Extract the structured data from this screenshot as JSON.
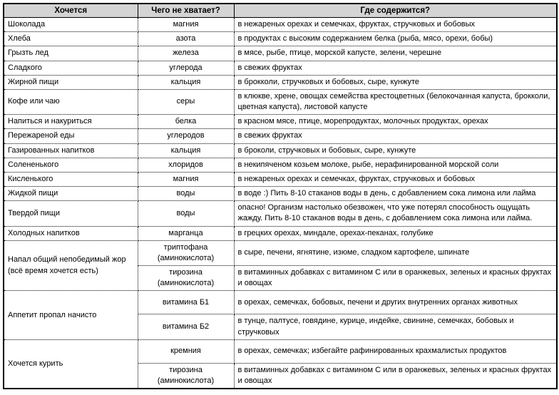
{
  "colors": {
    "page_bg": "#ffffff",
    "header_bg": "#d4d4d4",
    "border": "#000000",
    "text": "#000000"
  },
  "table": {
    "headers": [
      "Хочется",
      "Чего не хватает?",
      "Где содержится?"
    ],
    "rows": [
      {
        "craving": "Шоколада",
        "craving_rowspan": 1,
        "lacking": "магния",
        "source": "в нежареных орехах и семечках, фруктах, стручковых и бобовых"
      },
      {
        "craving": "Хлеба",
        "craving_rowspan": 1,
        "lacking": "азота",
        "source": "в продуктах с высоким содержанием белка (рыба, мясо, орехи, бобы)"
      },
      {
        "craving": "Грызть лед",
        "craving_rowspan": 1,
        "lacking": "железа",
        "source": "в мясе, рыбе, птице, морской капусте, зелени, черешне"
      },
      {
        "craving": "Сладкого",
        "craving_rowspan": 1,
        "lacking": "углерода",
        "source": "в свежих фруктах"
      },
      {
        "craving": "Жирной пищи",
        "craving_rowspan": 1,
        "lacking": "кальция",
        "source": "в брокколи, стручковых и бобовых, сыре, кунжуте"
      },
      {
        "craving": "Кофе или чаю",
        "craving_rowspan": 1,
        "lacking": "серы",
        "source": "в клюкве, хрене, овощах семейства крестоцветных (белокочанная капуста, брокколи, цветная капуста), листовой капусте"
      },
      {
        "craving": "Напиться и накуриться",
        "craving_rowspan": 1,
        "lacking": "белка",
        "source": "в красном мясе, птице, морепродуктах, молочных продуктах, орехах"
      },
      {
        "craving": "Пережареной еды",
        "craving_rowspan": 1,
        "lacking": "углеродов",
        "source": "в свежих фруктах"
      },
      {
        "craving": "Газированных напитков",
        "craving_rowspan": 1,
        "lacking": "кальция",
        "source": "в броколи, стручковых и бобовых, сыре, кунжуте"
      },
      {
        "craving": "Солененького",
        "craving_rowspan": 1,
        "lacking": "хлоридов",
        "source": "в некипяченом козьем молоке, рыбе, нерафинированной морской соли"
      },
      {
        "craving": "Кисленького",
        "craving_rowspan": 1,
        "lacking": "магния",
        "source": "в нежареных орехах и семечках, фруктах, стручковых и бобовых"
      },
      {
        "craving": "Жидкой пищи",
        "craving_rowspan": 1,
        "lacking": "воды",
        "source": "в воде :) Пить 8-10 стаканов воды в день, с добавлением сока лимона или лайма"
      },
      {
        "craving": "Твердой пищи",
        "craving_rowspan": 1,
        "lacking": "воды",
        "source": "опасно! Организм настолько обезвожен, что уже потерял способность ощущать жажду. Пить 8-10 стаканов воды в день, с добавлением сока лимона или лайма."
      },
      {
        "craving": "Холодных напитков",
        "craving_rowspan": 1,
        "lacking": "марганца",
        "source": "в грецких орехах, миндале, орехах-пеканах, голубике"
      },
      {
        "craving": "Напал общий непобедимый жор (всё время хочется есть)",
        "craving_rowspan": 2,
        "lacking": "триптофана (аминокислота)",
        "source": "в сыре, печени, ягнятине, изюме, сладком картофеле, шпинате"
      },
      {
        "craving": null,
        "craving_rowspan": 0,
        "lacking": "тирозина (аминокислота)",
        "source": "в витаминных добавках с витамином С или в оранжевых, зеленых и красных фруктах и овощах"
      },
      {
        "craving": "Аппетит пропал начисто",
        "craving_rowspan": 2,
        "lacking": "витамина Б1",
        "source": "в орехах, семечках, бобовых, печени и других внутренних органах животных"
      },
      {
        "craving": null,
        "craving_rowspan": 0,
        "lacking": "витамина Б2",
        "source": "в тунце, палтусе, говядине, курице, индейке, свинине, семечках, бобовых и стручковых"
      },
      {
        "craving": "Хочется курить",
        "craving_rowspan": 2,
        "lacking": "кремния",
        "source": "в орехах, семечках; избегайте рафинированных крахмалистых продуктов"
      },
      {
        "craving": null,
        "craving_rowspan": 0,
        "lacking": "тирозина (аминокислота)",
        "source": "в витаминных добавках с витамином С или в оранжевых, зеленых и красных фруктах и овощах"
      }
    ]
  }
}
